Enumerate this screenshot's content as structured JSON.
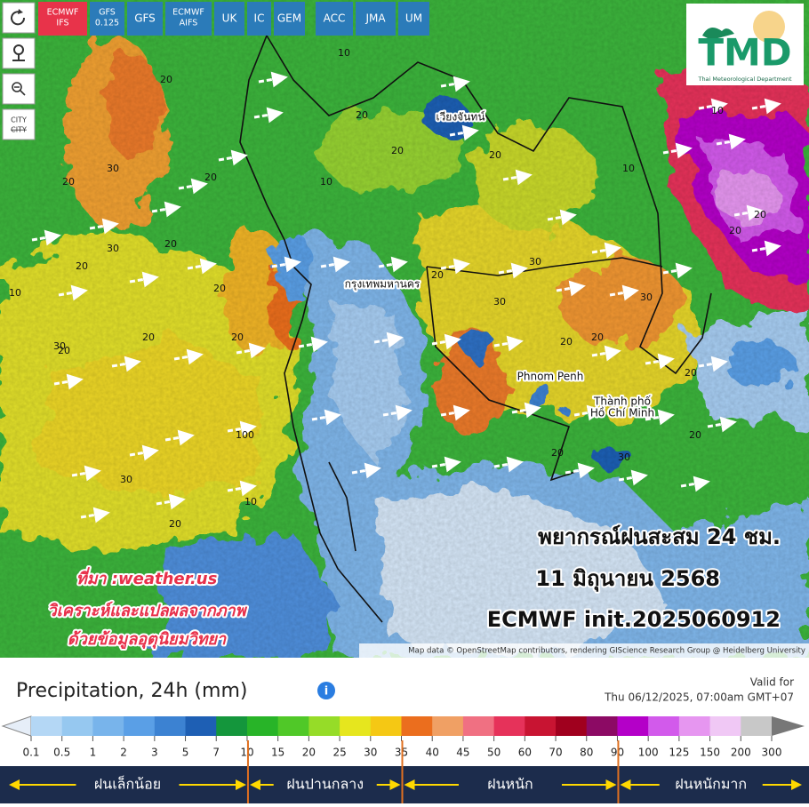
{
  "toolbar": {
    "models": [
      [
        "ECMWF",
        "IFS"
      ],
      [
        "GFS",
        "0.125"
      ],
      [
        "GFS"
      ],
      [
        "ECMWF",
        "AIFS"
      ],
      [
        "UK"
      ],
      [
        "IC"
      ],
      [
        "GEM"
      ],
      [
        "ACC"
      ],
      [
        "JMA"
      ],
      [
        "UM"
      ]
    ],
    "active_model": 0,
    "city_button": "CITY"
  },
  "logo": {
    "title": "TMD",
    "subtitle": "Thai Meteorological Department"
  },
  "map": {
    "place_labels": [
      [
        "เวียงจันทน์"
      ],
      [
        "กรุงเทพมหานคร"
      ],
      [
        "Phnom Penh"
      ],
      [
        "Thành phố",
        "Hồ Chí Minh"
      ]
    ],
    "contour_labels": [
      "20",
      "30",
      "20",
      "20",
      "30",
      "10",
      "20",
      "30",
      "20",
      "20",
      "10",
      "20",
      "20",
      "30",
      "20",
      "10",
      "20",
      "30",
      "20",
      "30",
      "20",
      "20",
      "10",
      "20",
      "20",
      "30",
      "20",
      "100",
      "10",
      "20",
      "30",
      "20",
      "10",
      "20",
      "20",
      "20"
    ],
    "attribution": "Map data © OpenStreetMap contributors, rendering GIScience Research Group @ Heidelberg University"
  },
  "overlay": {
    "title_lines": [
      "พยากรณ์ฝนสะสม 24 ชม.",
      "11 มิถุนายน 2568",
      "ECMWF init.2025060912"
    ],
    "credit_lines": [
      "ที่มา :weather.us",
      "วิเคราะห์และแปลผลจากภาพ",
      "ด้วยข้อมูลอุตุนิยมวิทยา"
    ]
  },
  "legend": {
    "title": "Precipitation, 24h (mm)",
    "valid_label": "Valid for",
    "valid_time": "Thu 06/12/2025, 07:00am GMT+07",
    "ticks": [
      0.1,
      0.5,
      1,
      2,
      3,
      5,
      7,
      10,
      15,
      20,
      25,
      30,
      35,
      40,
      45,
      50,
      60,
      70,
      80,
      90,
      100,
      125,
      150,
      200,
      300
    ],
    "colors": [
      "#b4d7f5",
      "#96c8f0",
      "#78b4eb",
      "#5a9fe6",
      "#3c82d2",
      "#1e5fb4",
      "#14963c",
      "#28b428",
      "#50c828",
      "#96dc28",
      "#e6e61e",
      "#f5c814",
      "#eb6e1e",
      "#f0a064",
      "#f07082",
      "#e6325a",
      "#c81432",
      "#a0001e",
      "#8c0a64",
      "#b400c8",
      "#d25aeb",
      "#e696f0",
      "#f0c8f5",
      "#c8c8c8"
    ],
    "categories": [
      "ฝนเล็กน้อย",
      "ฝนปานกลาง",
      "ฝนหนัก",
      "ฝนหนักมาก"
    ],
    "category_breaks": [
      10,
      35,
      90
    ]
  }
}
